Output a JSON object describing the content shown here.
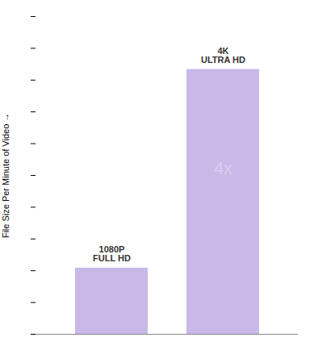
{
  "chart_data": {
    "type": "bar",
    "categories": [
      "1080P\nFULL HD",
      "4K\nULTRA HD"
    ],
    "values": [
      1,
      4
    ],
    "color": "#c9b8e8",
    "ylabel": "File Size Per Minute of Video",
    "ylim": [
      0,
      4.8
    ],
    "yticks": [
      0,
      0.48,
      0.96,
      1.44,
      1.92,
      2.4,
      2.88,
      3.36,
      3.84,
      4.32,
      4.8
    ],
    "tick_labels": false,
    "grid": false,
    "annotations": [
      {
        "text": "4x",
        "x": "4K\nULTRA HD",
        "y": 2.5,
        "color": "#ddccee"
      }
    ]
  }
}
